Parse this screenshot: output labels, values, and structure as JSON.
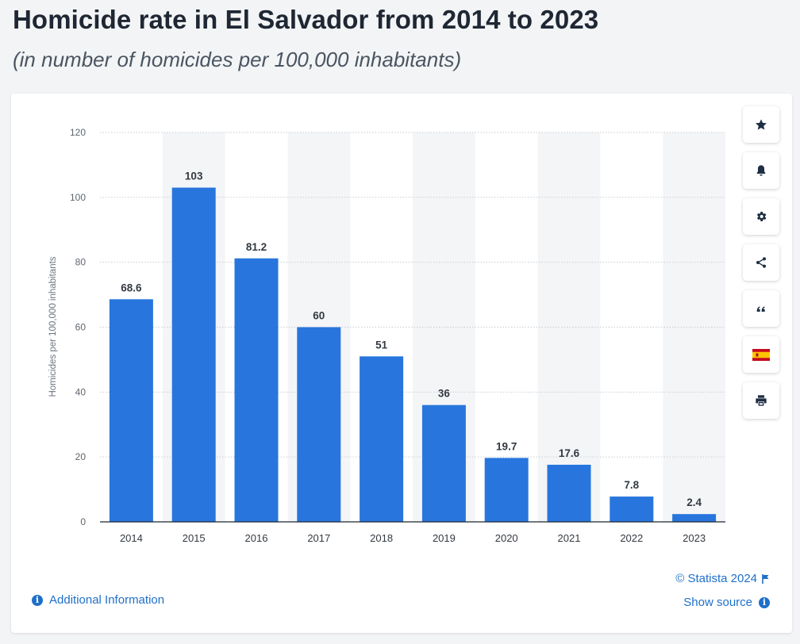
{
  "header": {
    "title": "Homicide rate in El Salvador from 2014 to 2023",
    "subtitle": "(in number of homicides per 100,000 inhabitants)"
  },
  "chart_data": {
    "type": "bar",
    "categories": [
      "2014",
      "2015",
      "2016",
      "2017",
      "2018",
      "2019",
      "2020",
      "2021",
      "2022",
      "2023"
    ],
    "values": [
      68.6,
      103,
      81.2,
      60,
      51,
      36,
      19.7,
      17.6,
      7.8,
      2.4
    ],
    "value_labels": [
      "68.6",
      "103",
      "81.2",
      "60",
      "51",
      "36",
      "19.7",
      "17.6",
      "7.8",
      "2.4"
    ],
    "ylabel": "Homicides per 100,000 inhabitants",
    "xlabel": "",
    "ylim": [
      0,
      120
    ],
    "yticks": [
      0,
      20,
      40,
      60,
      80,
      100,
      120
    ],
    "grid": true,
    "bar_color": "#2876dd"
  },
  "toolbar": {
    "items": [
      {
        "name": "favorite",
        "icon": "star-icon"
      },
      {
        "name": "notification",
        "icon": "bell-icon"
      },
      {
        "name": "settings",
        "icon": "gear-icon"
      },
      {
        "name": "share",
        "icon": "share-icon"
      },
      {
        "name": "cite",
        "icon": "quote-icon"
      },
      {
        "name": "language",
        "icon": "spain-flag-icon"
      },
      {
        "name": "print",
        "icon": "printer-icon"
      }
    ]
  },
  "footer": {
    "additional_info": "Additional Information",
    "copyright": "© Statista 2024",
    "show_source": "Show source"
  },
  "colors": {
    "accent": "#1f6fc9",
    "bar": "#2876dd",
    "title": "#1e2733"
  }
}
